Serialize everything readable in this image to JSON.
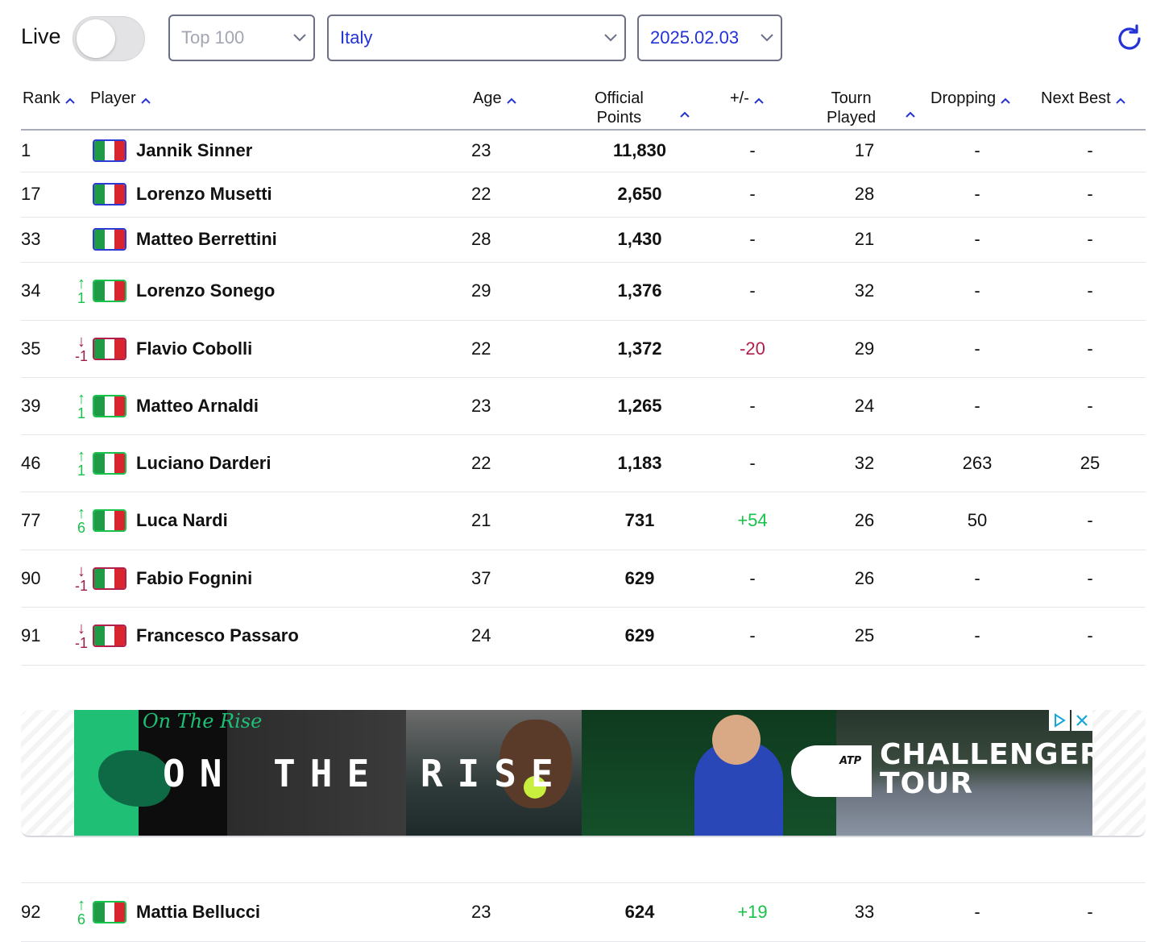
{
  "controls": {
    "live_label": "Live",
    "live_on": false,
    "top_select": "Top 100",
    "country_select": "Italy",
    "date_select": "2025.02.03",
    "refresh_icon": "refresh-icon"
  },
  "columns": {
    "rank": "Rank",
    "player": "Player",
    "age": "Age",
    "points_line1": "Official",
    "points_line2": "Points",
    "plusminus": "+/-",
    "tourn_line1": "Tourn",
    "tourn_line2": "Played",
    "dropping": "Dropping",
    "next_best": "Next Best"
  },
  "colors": {
    "accent": "#2332d6",
    "up": "#17c24a",
    "down": "#9c1e45",
    "flag_green": "#1f9a46",
    "flag_red": "#d9262e"
  },
  "rows": [
    {
      "rank": "1",
      "move": "",
      "move_dir": "none",
      "flag_border": "blue",
      "name": "Jannik Sinner",
      "age": "23",
      "points": "11,830",
      "pm": "-",
      "pm_dir": "none",
      "tourn": "17",
      "dropping": "-",
      "next_best": "-"
    },
    {
      "rank": "17",
      "move": "",
      "move_dir": "none",
      "flag_border": "blue",
      "name": "Lorenzo Musetti",
      "age": "22",
      "points": "2,650",
      "pm": "-",
      "pm_dir": "none",
      "tourn": "28",
      "dropping": "-",
      "next_best": "-"
    },
    {
      "rank": "33",
      "move": "",
      "move_dir": "none",
      "flag_border": "blue",
      "name": "Matteo Berrettini",
      "age": "28",
      "points": "1,430",
      "pm": "-",
      "pm_dir": "none",
      "tourn": "21",
      "dropping": "-",
      "next_best": "-"
    },
    {
      "rank": "34",
      "move": "1",
      "move_dir": "up",
      "flag_border": "green",
      "name": "Lorenzo Sonego",
      "age": "29",
      "points": "1,376",
      "pm": "-",
      "pm_dir": "none",
      "tourn": "32",
      "dropping": "-",
      "next_best": "-"
    },
    {
      "rank": "35",
      "move": "-1",
      "move_dir": "down",
      "flag_border": "red",
      "name": "Flavio Cobolli",
      "age": "22",
      "points": "1,372",
      "pm": "-20",
      "pm_dir": "neg",
      "tourn": "29",
      "dropping": "-",
      "next_best": "-"
    },
    {
      "rank": "39",
      "move": "1",
      "move_dir": "up",
      "flag_border": "green",
      "name": "Matteo Arnaldi",
      "age": "23",
      "points": "1,265",
      "pm": "-",
      "pm_dir": "none",
      "tourn": "24",
      "dropping": "-",
      "next_best": "-"
    },
    {
      "rank": "46",
      "move": "1",
      "move_dir": "up",
      "flag_border": "green",
      "name": "Luciano Darderi",
      "age": "22",
      "points": "1,183",
      "pm": "-",
      "pm_dir": "none",
      "tourn": "32",
      "dropping": "263",
      "next_best": "25"
    },
    {
      "rank": "77",
      "move": "6",
      "move_dir": "up",
      "flag_border": "green",
      "name": "Luca Nardi",
      "age": "21",
      "points": "731",
      "pm": "+54",
      "pm_dir": "pos",
      "tourn": "26",
      "dropping": "50",
      "next_best": "-"
    },
    {
      "rank": "90",
      "move": "-1",
      "move_dir": "down",
      "flag_border": "red",
      "name": "Fabio Fognini",
      "age": "37",
      "points": "629",
      "pm": "-",
      "pm_dir": "none",
      "tourn": "26",
      "dropping": "-",
      "next_best": "-"
    },
    {
      "rank": "91",
      "move": "-1",
      "move_dir": "down",
      "flag_border": "red",
      "name": "Francesco Passaro",
      "age": "24",
      "points": "629",
      "pm": "-",
      "pm_dir": "none",
      "tourn": "25",
      "dropping": "-",
      "next_best": "-"
    },
    {
      "rank": "92",
      "move": "6",
      "move_dir": "up",
      "flag_border": "green",
      "name": "Mattia Bellucci",
      "age": "23",
      "points": "624",
      "pm": "+19",
      "pm_dir": "pos",
      "tourn": "33",
      "dropping": "-",
      "next_best": "-"
    }
  ],
  "ad": {
    "script_text": "On The Rise",
    "headline": "ON THE RISE",
    "brand_line1": "CHALLENGER",
    "brand_line2": "TOUR",
    "brand_mark": "ATP",
    "adchoices_icon": "adchoices-icon",
    "close_icon": "close-icon"
  }
}
